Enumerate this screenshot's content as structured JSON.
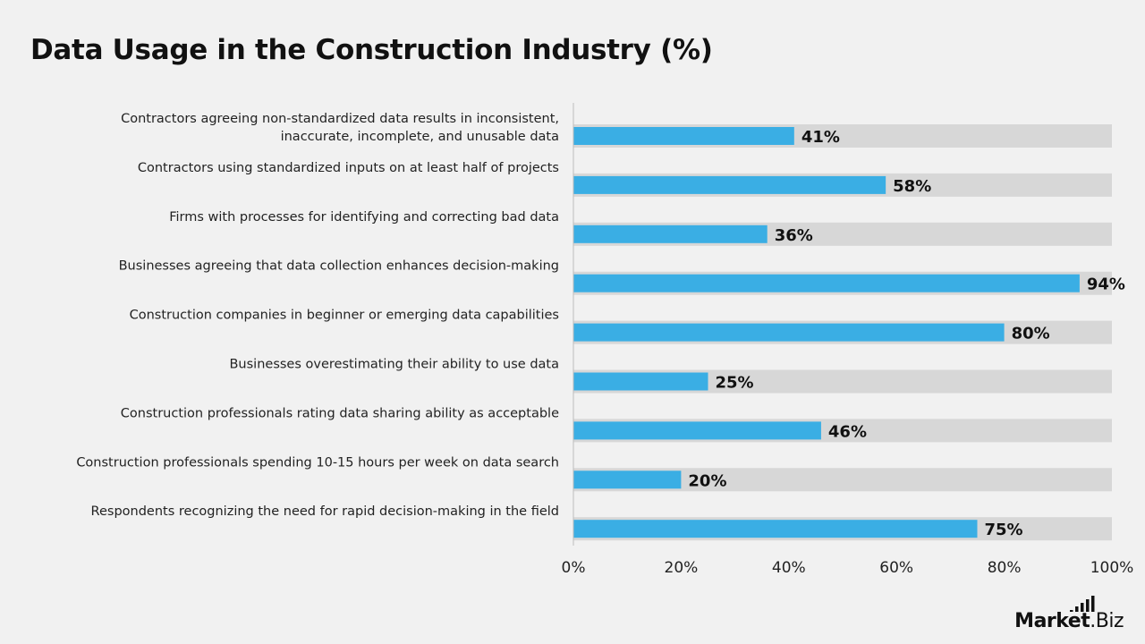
{
  "title": "Data Usage in the Construction Industry (%)",
  "colors": {
    "bar": "#3aaee4",
    "track": "#d7d7d7",
    "axis": "#bdbdbd"
  },
  "brand": {
    "name": "Market",
    "suffix": ".Biz",
    "icon": "bar-chart-icon"
  },
  "chart_data": {
    "type": "bar",
    "orientation": "horizontal",
    "categories": [
      "Contractors agreeing non-standardized data results in inconsistent,\ninaccurate, incomplete, and unusable data",
      "Contractors using standardized inputs on at least half of projects",
      "Firms with processes for identifying and correcting bad data",
      "Businesses agreeing that data collection enhances decision-making",
      "Construction companies in beginner or emerging data capabilities",
      "Businesses overestimating their ability to use data",
      "Construction professionals rating data sharing ability as acceptable",
      "Construction professionals spending 10-15 hours per week on data search",
      "Respondents recognizing the need for rapid decision-making in the field"
    ],
    "values": [
      41,
      58,
      36,
      94,
      80,
      25,
      46,
      20,
      75
    ],
    "value_labels": [
      "41%",
      "58%",
      "36%",
      "94%",
      "80%",
      "25%",
      "46%",
      "20%",
      "75%"
    ],
    "xlim": [
      0,
      100
    ],
    "x_ticks": [
      "0%",
      "20%",
      "40%",
      "60%",
      "80%",
      "100%"
    ],
    "grid": false,
    "legend": "none"
  }
}
